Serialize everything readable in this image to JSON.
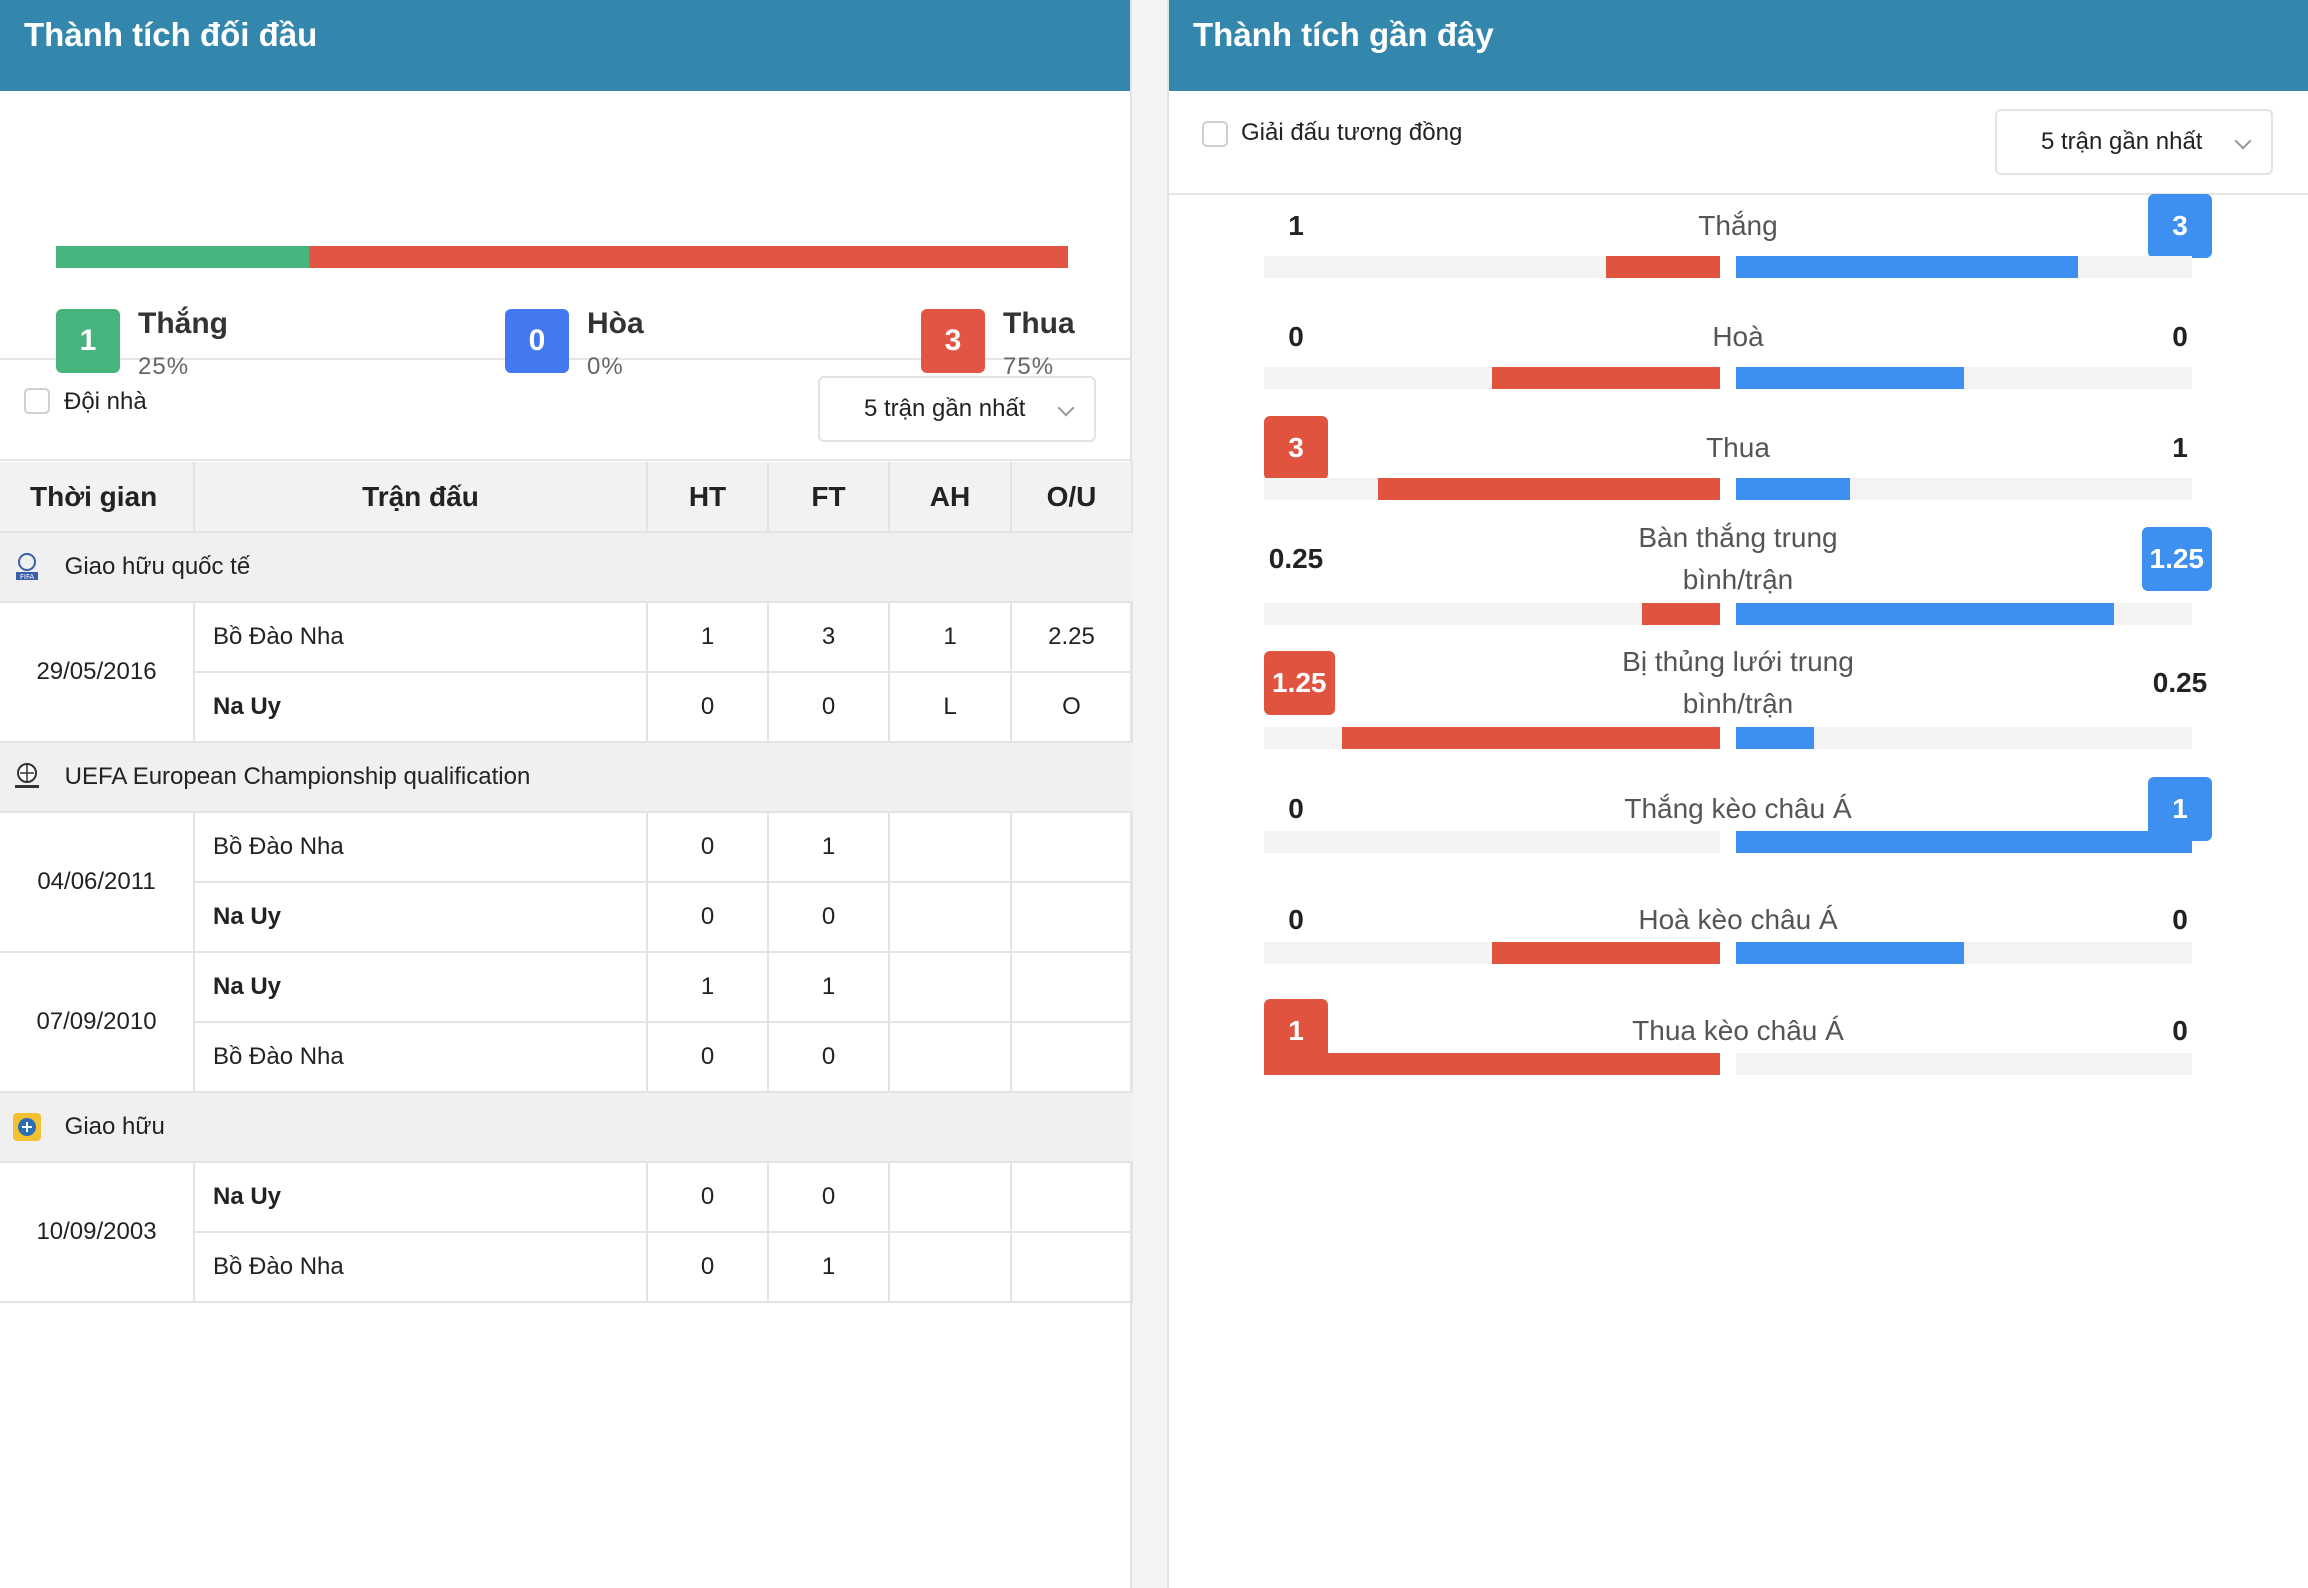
{
  "left": {
    "title": "Thành tích đối đầu",
    "summary": {
      "colors": {
        "win": "#47b47d",
        "draw": "#4378f0",
        "loss": "#e25545"
      },
      "win": {
        "count": "1",
        "label": "Thắng",
        "pct": "25%",
        "share": 0.25
      },
      "draw": {
        "count": "0",
        "label": "Hòa",
        "pct": "0%",
        "share": 0.0
      },
      "loss": {
        "count": "3",
        "label": "Thua",
        "pct": "75%",
        "share": 0.75
      }
    },
    "filter": {
      "checkbox_label": "Đội nhà",
      "dropdown_value": "5 trận gần nhất"
    },
    "table": {
      "headers": {
        "time": "Thời gian",
        "match": "Trận đấu",
        "ht": "HT",
        "ft": "FT",
        "ah": "AH",
        "ou": "O/U"
      },
      "groups": [
        {
          "league": "Giao hữu quốc tế",
          "league_icon": "fifa-icon",
          "matches": [
            {
              "date": "29/05/2016",
              "home": {
                "team": "Bồ Đào Nha",
                "ht": "1",
                "ft": "3",
                "ah": "1",
                "ou": "2.25"
              },
              "away": {
                "team": "Na Uy",
                "ht": "0",
                "ft": "0",
                "ah": "L",
                "ou": "O"
              }
            }
          ]
        },
        {
          "league": "UEFA European Championship qualification",
          "league_icon": "uefa-euro-icon",
          "matches": [
            {
              "date": "04/06/2011",
              "home": {
                "team": "Bồ Đào Nha",
                "ht": "0",
                "ft": "1",
                "ah": "",
                "ou": ""
              },
              "away": {
                "team": "Na Uy",
                "ht": "0",
                "ft": "0",
                "ah": "",
                "ou": ""
              }
            },
            {
              "date": "07/09/2010",
              "home": {
                "team": "Na Uy",
                "ht": "1",
                "ft": "1",
                "ah": "",
                "ou": ""
              },
              "away": {
                "team": "Bồ Đào Nha",
                "ht": "0",
                "ft": "0",
                "ah": "",
                "ou": ""
              }
            }
          ]
        },
        {
          "league": "Giao hữu",
          "league_icon": "friendly-cup-icon",
          "matches": [
            {
              "date": "10/09/2003",
              "home": {
                "team": "Na Uy",
                "ht": "0",
                "ft": "0",
                "ah": "",
                "ou": ""
              },
              "away": {
                "team": "Bồ Đào Nha",
                "ht": "0",
                "ft": "1",
                "ah": "",
                "ou": ""
              }
            }
          ]
        }
      ]
    }
  },
  "right": {
    "title": "Thành tích gần đây",
    "filter": {
      "checkbox_label": "Giải đấu tương đồng",
      "dropdown_value": "5 trận gần nhất"
    },
    "colors": {
      "home": "#e0533f",
      "away": "#3d8ff0"
    },
    "stats": [
      {
        "label": "Thắng",
        "home": "1",
        "away": "3",
        "highlight": "away",
        "home_fill": 0.25,
        "away_fill": 0.75
      },
      {
        "label": "Hoà",
        "home": "0",
        "away": "0",
        "highlight": "none",
        "home_fill": 0.5,
        "away_fill": 0.5
      },
      {
        "label": "Thua",
        "home": "3",
        "away": "1",
        "highlight": "home",
        "home_fill": 0.75,
        "away_fill": 0.25
      },
      {
        "label": "Bàn thắng trung bình/trận",
        "home": "0.25",
        "away": "1.25",
        "highlight": "away",
        "home_fill": 0.17,
        "away_fill": 0.83
      },
      {
        "label": "Bị thủng lưới trung bình/trận",
        "home": "1.25",
        "away": "0.25",
        "highlight": "home",
        "home_fill": 0.83,
        "away_fill": 0.17
      },
      {
        "label": "Thắng kèo châu Á",
        "home": "0",
        "away": "1",
        "highlight": "away",
        "home_fill": 0.0,
        "away_fill": 1.0
      },
      {
        "label": "Hoà kèo châu Á",
        "home": "0",
        "away": "0",
        "highlight": "none",
        "home_fill": 0.5,
        "away_fill": 0.5
      },
      {
        "label": "Thua kèo châu Á",
        "home": "1",
        "away": "0",
        "highlight": "home",
        "home_fill": 1.0,
        "away_fill": 0.0
      }
    ]
  }
}
